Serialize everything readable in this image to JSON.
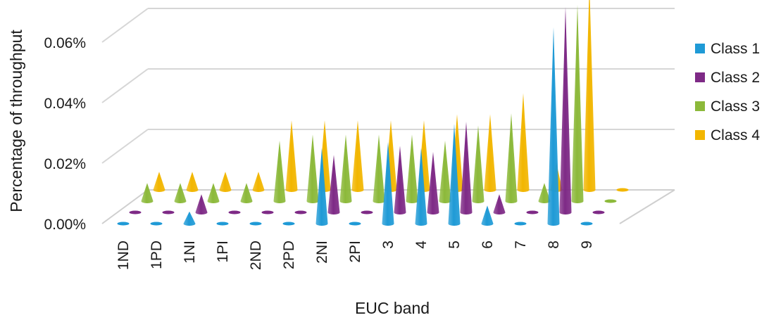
{
  "chart_data": {
    "type": "bar",
    "subtype": "3d-cone",
    "title": "",
    "xlabel": "EUC band",
    "ylabel": "Percentage of throughput",
    "ylim": [
      0,
      0.07
    ],
    "y_tick_labels": [
      "0.00%",
      "0.02%",
      "0.04%",
      "0.06%"
    ],
    "y_tick_values": [
      0,
      0.02,
      0.04,
      0.06
    ],
    "grid": true,
    "legend_position": "right",
    "categories": [
      "1ND",
      "1PD",
      "1NI",
      "1PI",
      "2ND",
      "2PD",
      "2NI",
      "2PI",
      "3",
      "4",
      "5",
      "6",
      "7",
      "8",
      "9"
    ],
    "series": [
      {
        "name": "Class 1",
        "color": "#1f9ad6",
        "values": [
          0,
          0,
          0.004,
          0,
          0,
          0,
          0.025,
          0,
          0.027,
          0.025,
          0.033,
          0.006,
          0,
          0.065,
          0
        ]
      },
      {
        "name": "Class 2",
        "color": "#7e2a86",
        "values": [
          0,
          0,
          0.006,
          0,
          0,
          0,
          0.019,
          0,
          0.022,
          0.02,
          0.03,
          0.006,
          0,
          0.068,
          0
        ]
      },
      {
        "name": "Class 3",
        "color": "#8cb93a",
        "values": [
          0.006,
          0.006,
          0.006,
          0.006,
          0.02,
          0.022,
          0.022,
          0.022,
          0.022,
          0.02,
          0.025,
          0.029,
          0.006,
          0.065,
          0
        ]
      },
      {
        "name": "Class 4",
        "color": "#f2b600",
        "values": [
          0.006,
          0.006,
          0.006,
          0.006,
          0.023,
          0.023,
          0.023,
          0.023,
          0.023,
          0.025,
          0.025,
          0.032,
          0.009,
          0.068,
          0
        ]
      }
    ]
  }
}
